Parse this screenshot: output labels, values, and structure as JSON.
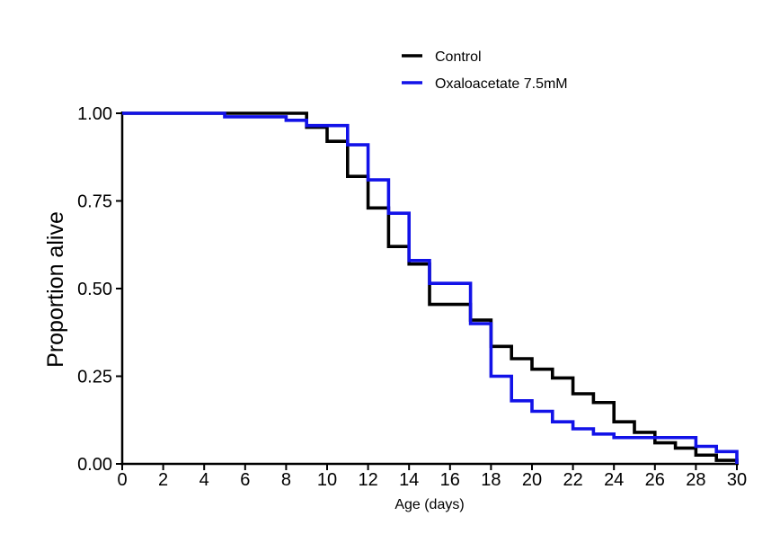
{
  "figure": {
    "background_color": "#ffffff",
    "legend": [
      {
        "label": "Control",
        "color": "#000000"
      },
      {
        "label": "Oxaloacetate 7.5mM",
        "color": "#1212e8"
      }
    ]
  },
  "axes": {
    "x": {
      "title": "Age (days)",
      "ticks": [
        0,
        2,
        4,
        6,
        8,
        10,
        12,
        14,
        16,
        18,
        20,
        22,
        24,
        26,
        28,
        30
      ],
      "range": [
        0,
        30
      ]
    },
    "y": {
      "title": "Proportion alive",
      "ticks": [
        {
          "label": "1.00",
          "value": 1.0
        },
        {
          "label": "0.75",
          "value": 0.75
        },
        {
          "label": "0.50",
          "value": 0.5
        },
        {
          "label": "0.25",
          "value": 0.25
        },
        {
          "label": "0.00",
          "value": 0.0
        }
      ],
      "range": [
        0,
        1
      ]
    }
  },
  "chart_data": {
    "type": "line",
    "subtype": "kaplan_meier_survival_step",
    "title": "",
    "xlabel": "Age (days)",
    "ylabel": "Proportion alive",
    "xlim": [
      0,
      30
    ],
    "ylim": [
      0,
      1
    ],
    "grid": false,
    "legend_position": "top-center",
    "series": [
      {
        "name": "Control",
        "color": "#000000",
        "steps_day_proportion": [
          [
            0,
            1.0
          ],
          [
            9,
            0.96
          ],
          [
            10,
            0.92
          ],
          [
            11,
            0.82
          ],
          [
            12,
            0.73
          ],
          [
            13,
            0.62
          ],
          [
            14,
            0.57
          ],
          [
            15,
            0.455
          ],
          [
            17,
            0.41
          ],
          [
            18,
            0.335
          ],
          [
            19,
            0.3
          ],
          [
            20,
            0.27
          ],
          [
            21,
            0.245
          ],
          [
            22,
            0.2
          ],
          [
            23,
            0.175
          ],
          [
            24,
            0.12
          ],
          [
            25,
            0.09
          ],
          [
            26,
            0.06
          ],
          [
            27,
            0.045
          ],
          [
            28,
            0.025
          ],
          [
            29,
            0.01
          ],
          [
            30,
            0.0
          ]
        ]
      },
      {
        "name": "Oxaloacetate 7.5mM",
        "color": "#1212e8",
        "steps_day_proportion": [
          [
            0,
            1.0
          ],
          [
            5,
            0.99
          ],
          [
            8,
            0.98
          ],
          [
            9,
            0.965
          ],
          [
            11,
            0.91
          ],
          [
            12,
            0.81
          ],
          [
            13,
            0.715
          ],
          [
            14,
            0.58
          ],
          [
            15,
            0.515
          ],
          [
            17,
            0.4
          ],
          [
            18,
            0.25
          ],
          [
            19,
            0.18
          ],
          [
            20,
            0.15
          ],
          [
            21,
            0.12
          ],
          [
            22,
            0.1
          ],
          [
            23,
            0.085
          ],
          [
            24,
            0.075
          ],
          [
            28,
            0.05
          ],
          [
            29,
            0.035
          ],
          [
            30,
            0.0
          ]
        ]
      }
    ]
  }
}
